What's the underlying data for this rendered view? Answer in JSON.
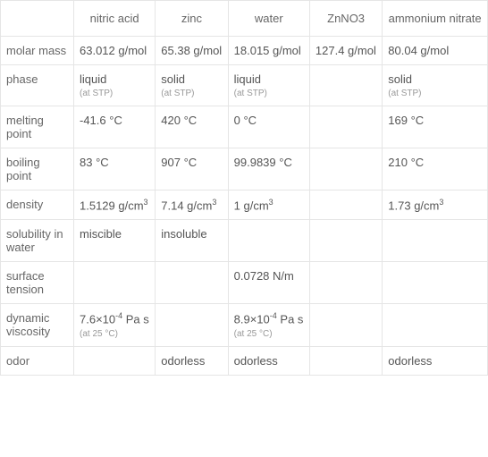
{
  "columns": [
    "nitric acid",
    "zinc",
    "water",
    "ZnNO3",
    "ammonium nitrate"
  ],
  "rows": [
    {
      "label": "molar mass",
      "cells": [
        {
          "value": "63.012 g/mol"
        },
        {
          "value": "65.38 g/mol"
        },
        {
          "value": "18.015 g/mol"
        },
        {
          "value": "127.4 g/mol"
        },
        {
          "value": "80.04 g/mol"
        }
      ]
    },
    {
      "label": "phase",
      "cells": [
        {
          "value": "liquid",
          "note": "(at STP)"
        },
        {
          "value": "solid",
          "note": "(at STP)"
        },
        {
          "value": "liquid",
          "note": "(at STP)"
        },
        {
          "value": ""
        },
        {
          "value": "solid",
          "note": "(at STP)"
        }
      ]
    },
    {
      "label": "melting point",
      "cells": [
        {
          "value": "-41.6 °C"
        },
        {
          "value": "420 °C"
        },
        {
          "value": "0 °C"
        },
        {
          "value": ""
        },
        {
          "value": "169 °C"
        }
      ]
    },
    {
      "label": "boiling point",
      "cells": [
        {
          "value": "83 °C"
        },
        {
          "value": "907 °C"
        },
        {
          "value": "99.9839 °C"
        },
        {
          "value": ""
        },
        {
          "value": "210 °C"
        }
      ]
    },
    {
      "label": "density",
      "cells": [
        {
          "value": "1.5129 g/cm",
          "sup": "3"
        },
        {
          "value": "7.14 g/cm",
          "sup": "3"
        },
        {
          "value": "1 g/cm",
          "sup": "3"
        },
        {
          "value": ""
        },
        {
          "value": "1.73 g/cm",
          "sup": "3"
        }
      ]
    },
    {
      "label": "solubility in water",
      "cells": [
        {
          "value": "miscible"
        },
        {
          "value": "insoluble"
        },
        {
          "value": ""
        },
        {
          "value": ""
        },
        {
          "value": ""
        }
      ]
    },
    {
      "label": "surface tension",
      "cells": [
        {
          "value": ""
        },
        {
          "value": ""
        },
        {
          "value": "0.0728 N/m"
        },
        {
          "value": ""
        },
        {
          "value": ""
        }
      ]
    },
    {
      "label": "dynamic viscosity",
      "cells": [
        {
          "value": "7.6×10",
          "sup": "-4",
          "suffix": " Pa s",
          "note": "(at 25 °C)"
        },
        {
          "value": ""
        },
        {
          "value": "8.9×10",
          "sup": "-4",
          "suffix": " Pa s",
          "note": "(at 25 °C)"
        },
        {
          "value": ""
        },
        {
          "value": ""
        }
      ]
    },
    {
      "label": "odor",
      "cells": [
        {
          "value": ""
        },
        {
          "value": "odorless"
        },
        {
          "value": "odorless"
        },
        {
          "value": ""
        },
        {
          "value": "odorless"
        }
      ]
    }
  ]
}
